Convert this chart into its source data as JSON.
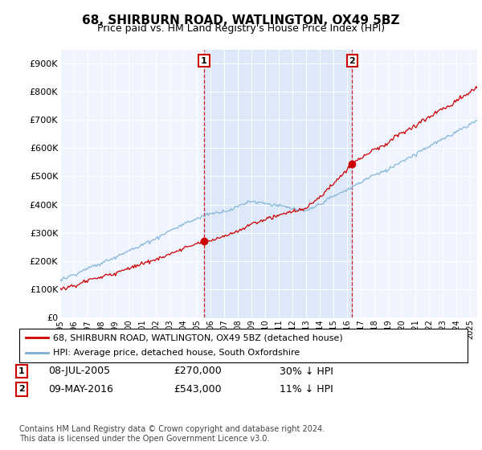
{
  "title": "68, SHIRBURN ROAD, WATLINGTON, OX49 5BZ",
  "subtitle": "Price paid vs. HM Land Registry's House Price Index (HPI)",
  "hpi_label": "HPI: Average price, detached house, South Oxfordshire",
  "property_label": "68, SHIRBURN ROAD, WATLINGTON, OX49 5BZ (detached house)",
  "property_color": "#cc0000",
  "hpi_color": "#7ab0d4",
  "shade_color": "#ddeeff",
  "sale1_date": "08-JUL-2005",
  "sale1_price": 270000,
  "sale1_hpi_diff": "30% ↓ HPI",
  "sale2_date": "09-MAY-2016",
  "sale2_price": 543000,
  "sale2_hpi_diff": "11% ↓ HPI",
  "sale1_year": 2005.52,
  "sale2_year": 2016.36,
  "ylim_min": 0,
  "ylim_max": 950000,
  "xlim_min": 1995,
  "xlim_max": 2025.5,
  "footnote": "Contains HM Land Registry data © Crown copyright and database right 2024.\nThis data is licensed under the Open Government Licence v3.0.",
  "background_color": "#f5f8ff"
}
